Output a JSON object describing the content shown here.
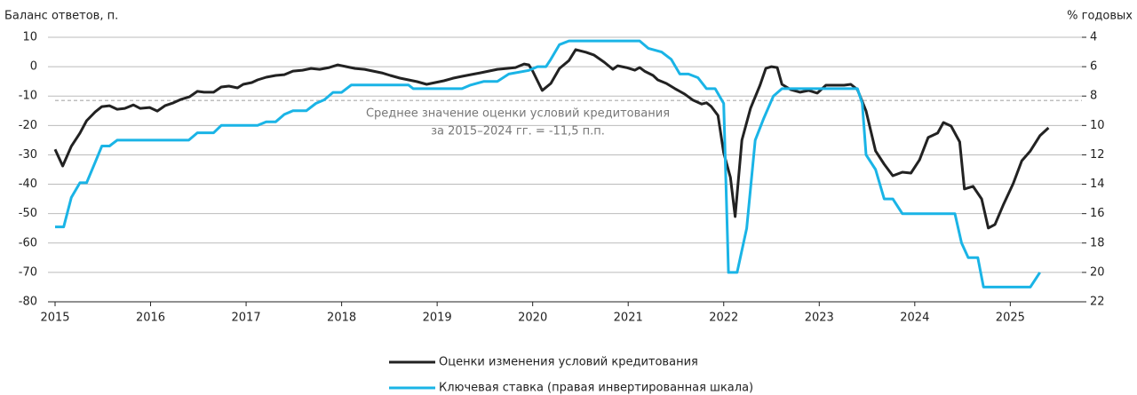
{
  "chart_data": {
    "type": "line",
    "y_axis_label": "Баланс ответов, п.",
    "y2_axis_label": "% годовых",
    "xlim": [
      2015,
      2025.75
    ],
    "xticks": [
      2015,
      2016,
      2017,
      2018,
      2019,
      2020,
      2021,
      2022,
      2023,
      2024,
      2025
    ],
    "ylim": [
      -80,
      10
    ],
    "yticks": [
      -80,
      -70,
      -60,
      -50,
      -40,
      -30,
      -20,
      -10,
      0,
      10
    ],
    "y2lim": [
      22,
      4
    ],
    "y2ticks": [
      22,
      20,
      18,
      16,
      14,
      12,
      10,
      8,
      6,
      4
    ],
    "y2_inverted": true,
    "grid": true,
    "legend": "bottom",
    "reference_line": {
      "value": -11.5,
      "color": "#aaaaaa",
      "label": [
        "Среднее значение оценки условий кредитования",
        "за 2015–2024 гг. = -11,5 п.п."
      ]
    },
    "series": [
      {
        "name": "Оценки изменения условий кредитования",
        "color": "#222222",
        "axis": "y",
        "x": [
          2015.0,
          2015.08,
          2015.17,
          2015.26,
          2015.33,
          2015.42,
          2015.49,
          2015.57,
          2015.65,
          2015.73,
          2015.82,
          2015.89,
          2015.99,
          2016.07,
          2016.15,
          2016.24,
          2016.32,
          2016.41,
          2016.49,
          2016.56,
          2016.66,
          2016.74,
          2016.82,
          2016.91,
          2016.97,
          2017.06,
          2017.12,
          2017.21,
          2017.31,
          2017.4,
          2017.49,
          2017.59,
          2017.68,
          2017.77,
          2017.87,
          2017.96,
          2018.05,
          2018.14,
          2018.24,
          2018.33,
          2018.42,
          2018.51,
          2018.61,
          2018.7,
          2018.79,
          2018.89,
          2018.98,
          2019.07,
          2019.17,
          2019.26,
          2019.35,
          2019.45,
          2019.54,
          2019.63,
          2019.73,
          2019.82,
          2019.91,
          2019.96,
          2020.0,
          2020.1,
          2020.19,
          2020.28,
          2020.38,
          2020.45,
          2020.56,
          2020.64,
          2020.75,
          2020.84,
          2020.89,
          2020.98,
          2021.07,
          2021.12,
          2021.17,
          2021.26,
          2021.31,
          2021.4,
          2021.49,
          2021.59,
          2021.68,
          2021.77,
          2021.82,
          2021.87,
          2021.94,
          2022.0,
          2022.07,
          2022.12,
          2022.19,
          2022.28,
          2022.38,
          2022.44,
          2022.5,
          2022.56,
          2022.61,
          2022.7,
          2022.8,
          2022.89,
          2022.98,
          2023.07,
          2023.17,
          2023.26,
          2023.33,
          2023.4,
          2023.49,
          2023.59,
          2023.68,
          2023.77,
          2023.87,
          2023.96,
          2024.05,
          2024.14,
          2024.24,
          2024.3,
          2024.38,
          2024.47,
          2024.52,
          2024.61,
          2024.7,
          2024.77,
          2024.84,
          2024.93,
          2025.03,
          2025.12,
          2025.21,
          2025.31,
          2025.4
        ],
        "values": [
          -28.1,
          -33.8,
          -27.1,
          -22.6,
          -18.4,
          -15.4,
          -13.6,
          -13.3,
          -14.5,
          -14.2,
          -13.0,
          -14.2,
          -13.9,
          -15.1,
          -13.3,
          -12.3,
          -11.1,
          -10.2,
          -8.4,
          -8.7,
          -8.7,
          -6.9,
          -6.6,
          -7.2,
          -6.0,
          -5.4,
          -4.5,
          -3.6,
          -3.0,
          -2.7,
          -1.5,
          -1.2,
          -0.6,
          -0.9,
          -0.3,
          0.6,
          0.0,
          -0.6,
          -0.9,
          -1.5,
          -2.1,
          -3.0,
          -3.9,
          -4.5,
          -5.1,
          -6.0,
          -5.4,
          -4.8,
          -3.9,
          -3.3,
          -2.7,
          -2.1,
          -1.5,
          -0.9,
          -0.6,
          -0.3,
          0.9,
          0.6,
          -1.5,
          -8.1,
          -5.7,
          -0.6,
          2.1,
          5.8,
          4.9,
          4.0,
          1.5,
          -0.9,
          0.3,
          -0.3,
          -1.2,
          -0.3,
          -1.5,
          -3.0,
          -4.5,
          -5.7,
          -7.5,
          -9.3,
          -11.4,
          -12.7,
          -12.3,
          -13.6,
          -16.6,
          -29.3,
          -37.7,
          -51.0,
          -25.0,
          -14.2,
          -6.3,
          -0.6,
          0.0,
          -0.3,
          -6.0,
          -7.8,
          -8.7,
          -8.1,
          -9.0,
          -6.3,
          -6.3,
          -6.3,
          -6.0,
          -7.8,
          -15.1,
          -28.7,
          -33.2,
          -37.1,
          -35.9,
          -36.2,
          -31.7,
          -24.1,
          -22.6,
          -19.0,
          -20.2,
          -25.6,
          -41.6,
          -40.7,
          -45.0,
          -54.9,
          -53.7,
          -46.8,
          -39.8,
          -32.0,
          -28.7,
          -23.5,
          -20.8
        ]
      },
      {
        "name": "Ключевая ставка (правая инвертированная шкала)",
        "color": "#1ab4e6",
        "axis": "y2",
        "x": [
          2015.0,
          2015.09,
          2015.17,
          2015.26,
          2015.33,
          2015.42,
          2015.49,
          2015.57,
          2015.65,
          2016.4,
          2016.49,
          2016.66,
          2016.74,
          2017.12,
          2017.21,
          2017.31,
          2017.4,
          2017.49,
          2017.63,
          2017.73,
          2017.82,
          2017.91,
          2018.0,
          2018.1,
          2018.7,
          2018.75,
          2019.26,
          2019.35,
          2019.49,
          2019.63,
          2019.75,
          2019.96,
          2020.05,
          2020.14,
          2020.19,
          2020.28,
          2020.38,
          2021.12,
          2021.21,
          2021.35,
          2021.45,
          2021.54,
          2021.63,
          2021.73,
          2021.82,
          2021.91,
          2022.0,
          2022.05,
          2022.14,
          2022.24,
          2022.33,
          2022.42,
          2022.52,
          2022.61,
          2023.4,
          2023.45,
          2023.49,
          2023.59,
          2023.68,
          2023.77,
          2023.87,
          2024.42,
          2024.49,
          2024.56,
          2024.66,
          2024.72,
          2025.21,
          2025.31
        ],
        "values": [
          16.9,
          16.9,
          14.9,
          13.9,
          13.9,
          12.5,
          11.4,
          11.4,
          11.0,
          11.0,
          10.5,
          10.5,
          10.0,
          10.0,
          9.75,
          9.75,
          9.25,
          9.0,
          9.0,
          8.5,
          8.25,
          7.75,
          7.75,
          7.25,
          7.25,
          7.5,
          7.5,
          7.25,
          7.0,
          7.0,
          6.5,
          6.25,
          6.0,
          6.0,
          5.5,
          4.5,
          4.25,
          4.25,
          4.75,
          5.0,
          5.5,
          6.5,
          6.5,
          6.75,
          7.5,
          7.5,
          8.5,
          20,
          20,
          17,
          11,
          9.5,
          8,
          7.5,
          7.5,
          8.5,
          12,
          13,
          15,
          15,
          16,
          16,
          18,
          19,
          19,
          21,
          21,
          20
        ]
      }
    ]
  }
}
